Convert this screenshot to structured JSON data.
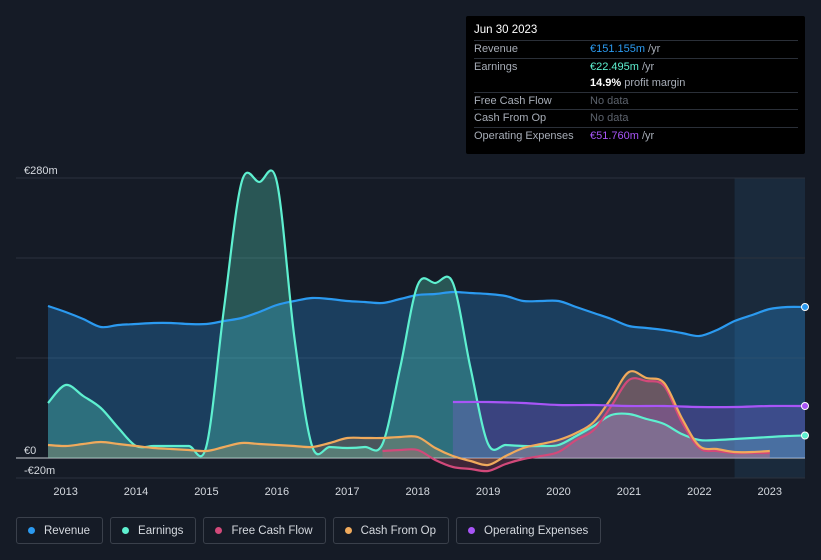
{
  "tooltip": {
    "date": "Jun 30 2023",
    "rows": [
      {
        "label": "Revenue",
        "value": "€151.155m",
        "unit": "/yr",
        "color": "#2b9af0"
      },
      {
        "label": "Earnings",
        "value": "€22.495m",
        "unit": "/yr",
        "color": "#5ef0d0"
      },
      {
        "label": "",
        "value": "14.9%",
        "unit": "profit margin",
        "color": "#ffffff"
      },
      {
        "label": "Free Cash Flow",
        "value": "No data",
        "unit": "",
        "color": "#5d636d"
      },
      {
        "label": "Cash From Op",
        "value": "No data",
        "unit": "",
        "color": "#5d636d"
      },
      {
        "label": "Operating Expenses",
        "value": "€51.760m",
        "unit": "/yr",
        "color": "#a855f7"
      }
    ]
  },
  "legend": [
    {
      "label": "Revenue",
      "color": "#2b9af0"
    },
    {
      "label": "Earnings",
      "color": "#5ef0d0"
    },
    {
      "label": "Free Cash Flow",
      "color": "#d2497a"
    },
    {
      "label": "Cash From Op",
      "color": "#f0aa5c"
    },
    {
      "label": "Operating Expenses",
      "color": "#a855f7"
    }
  ],
  "chart_data": {
    "type": "line",
    "title": "",
    "xlabel": "",
    "ylabel": "",
    "currency": "€",
    "ylim": [
      -20,
      280
    ],
    "y_tick_labels": [
      "€280m",
      "€0",
      "-€20m"
    ],
    "y_ticks": [
      280,
      0,
      -20
    ],
    "gridlines": [
      280,
      200,
      100,
      0
    ],
    "xlim": [
      2012.75,
      2023.5
    ],
    "x_tick_labels": [
      "2013",
      "2014",
      "2015",
      "2016",
      "2017",
      "2018",
      "2019",
      "2020",
      "2021",
      "2022",
      "2023"
    ],
    "x_ticks": [
      2013,
      2014,
      2015,
      2016,
      2017,
      2018,
      2019,
      2020,
      2021,
      2022,
      2023
    ],
    "forecast_region_start": 2022.5,
    "series": [
      {
        "name": "Revenue",
        "color": "#2b9af0",
        "fill": true,
        "x": [
          2012.75,
          2013.0,
          2013.25,
          2013.5,
          2013.75,
          2014.0,
          2014.25,
          2014.5,
          2014.75,
          2015.0,
          2015.25,
          2015.5,
          2015.75,
          2016.0,
          2016.25,
          2016.5,
          2016.75,
          2017.0,
          2017.25,
          2017.5,
          2017.75,
          2018.0,
          2018.25,
          2018.5,
          2018.75,
          2019.0,
          2019.25,
          2019.5,
          2019.75,
          2020.0,
          2020.25,
          2020.5,
          2020.75,
          2021.0,
          2021.25,
          2021.5,
          2021.75,
          2022.0,
          2022.25,
          2022.5,
          2022.75,
          2023.0,
          2023.25,
          2023.5
        ],
        "values": [
          152,
          146,
          139,
          131,
          133,
          134,
          135,
          135,
          134,
          134,
          137,
          140,
          146,
          153,
          157,
          160,
          159,
          157,
          156,
          155,
          159,
          163,
          164,
          166,
          165,
          164,
          162,
          157,
          157,
          157,
          151,
          145,
          139,
          132,
          130,
          128,
          125,
          122,
          128,
          137,
          143,
          149,
          151,
          151
        ]
      },
      {
        "name": "Earnings",
        "color": "#5ef0d0",
        "fill": true,
        "x": [
          2012.75,
          2013.0,
          2013.25,
          2013.5,
          2013.75,
          2014.0,
          2014.25,
          2014.5,
          2014.75,
          2015.0,
          2015.25,
          2015.5,
          2015.75,
          2016.0,
          2016.25,
          2016.5,
          2016.75,
          2017.0,
          2017.25,
          2017.5,
          2017.75,
          2018.0,
          2018.25,
          2018.5,
          2018.75,
          2019.0,
          2019.25,
          2019.5,
          2019.75,
          2020.0,
          2020.25,
          2020.5,
          2020.75,
          2021.0,
          2021.25,
          2021.5,
          2021.75,
          2022.0,
          2022.25,
          2022.5,
          2022.75,
          2023.0,
          2023.25,
          2023.5
        ],
        "values": [
          55,
          73,
          62,
          50,
          30,
          12,
          12,
          12,
          12,
          12,
          150,
          276,
          276,
          276,
          120,
          12,
          11,
          10,
          11,
          14,
          90,
          173,
          175,
          175,
          90,
          14,
          13,
          12,
          12,
          13,
          22,
          32,
          43,
          44,
          39,
          34,
          24,
          18,
          18,
          19,
          20,
          21,
          22,
          22.5
        ]
      },
      {
        "name": "Free Cash Flow",
        "color": "#d2497a",
        "fill": true,
        "x": [
          2017.5,
          2017.75,
          2018.0,
          2018.25,
          2018.5,
          2018.75,
          2019.0,
          2019.25,
          2019.5,
          2019.75,
          2020.0,
          2020.25,
          2020.5,
          2020.75,
          2021.0,
          2021.25,
          2021.5,
          2021.75,
          2022.0,
          2022.25,
          2022.5,
          2022.75,
          2023.0
        ],
        "values": [
          7,
          8,
          8,
          -2,
          -9,
          -11,
          -13,
          -6,
          -1,
          2,
          6,
          18,
          28,
          52,
          78,
          77,
          72,
          36,
          10,
          7,
          5,
          5,
          5
        ]
      },
      {
        "name": "Cash From Op",
        "color": "#f0aa5c",
        "fill": true,
        "x": [
          2012.75,
          2013.0,
          2013.25,
          2013.5,
          2013.75,
          2014.0,
          2014.25,
          2014.5,
          2014.75,
          2015.0,
          2015.25,
          2015.5,
          2015.75,
          2016.0,
          2016.25,
          2016.5,
          2016.75,
          2017.0,
          2017.25,
          2017.5,
          2017.75,
          2018.0,
          2018.25,
          2018.5,
          2018.75,
          2019.0,
          2019.25,
          2019.5,
          2019.75,
          2020.0,
          2020.25,
          2020.5,
          2020.75,
          2021.0,
          2021.25,
          2021.5,
          2021.75,
          2022.0,
          2022.25,
          2022.5,
          2022.75,
          2023.0
        ],
        "values": [
          13,
          12,
          14,
          16,
          14,
          12,
          10,
          9,
          8,
          7,
          11,
          15,
          14,
          13,
          12,
          11,
          15,
          20,
          20,
          20,
          21,
          21,
          10,
          2,
          -3,
          -7,
          2,
          10,
          14,
          18,
          25,
          36,
          60,
          86,
          80,
          75,
          40,
          12,
          9,
          6,
          6,
          7
        ]
      },
      {
        "name": "Operating Expenses",
        "color": "#a855f7",
        "fill": true,
        "x": [
          2018.5,
          2019.0,
          2019.5,
          2020.0,
          2020.5,
          2021.0,
          2021.5,
          2022.0,
          2022.5,
          2023.0,
          2023.5
        ],
        "values": [
          56,
          56,
          55,
          53,
          53,
          52,
          52,
          51,
          51,
          52,
          52
        ]
      }
    ]
  }
}
